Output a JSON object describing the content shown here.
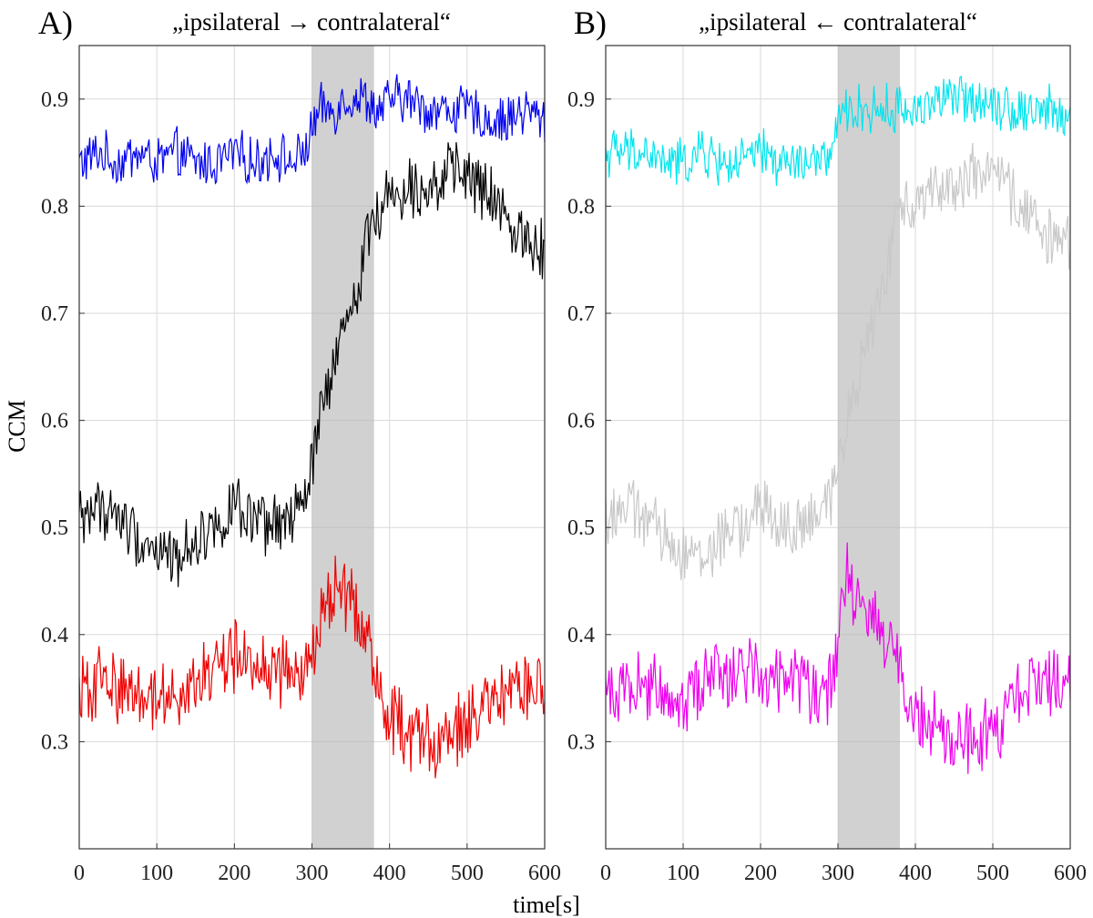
{
  "figure": {
    "xlabel": "time[s]",
    "ylabel": "CCM"
  },
  "chart_data": [
    {
      "type": "line",
      "panel_label": "A)",
      "title": "„ipsilateral → contralateral“",
      "xlim": [
        0,
        600
      ],
      "ylim": [
        0.2,
        0.95
      ],
      "x_ticks": [
        0,
        100,
        200,
        300,
        400,
        500,
        600
      ],
      "y_ticks": [
        0.3,
        0.4,
        0.5,
        0.6,
        0.7,
        0.8,
        0.9
      ],
      "grid": true,
      "shaded_region": {
        "x": [
          300,
          380
        ],
        "color": "#b3b3b3"
      },
      "x": [
        0,
        25,
        50,
        75,
        100,
        125,
        150,
        175,
        200,
        225,
        250,
        275,
        290,
        300,
        310,
        320,
        330,
        340,
        350,
        360,
        370,
        380,
        390,
        400,
        425,
        450,
        475,
        500,
        525,
        550,
        575,
        600
      ],
      "series": [
        {
          "color": "#0000ee",
          "noise": 0.02,
          "values": [
            0.84,
            0.85,
            0.84,
            0.85,
            0.84,
            0.85,
            0.84,
            0.84,
            0.85,
            0.84,
            0.85,
            0.84,
            0.85,
            0.87,
            0.89,
            0.89,
            0.89,
            0.9,
            0.9,
            0.9,
            0.9,
            0.89,
            0.89,
            0.9,
            0.9,
            0.89,
            0.89,
            0.89,
            0.88,
            0.88,
            0.89,
            0.88
          ]
        },
        {
          "color": "#000000",
          "noise": 0.025,
          "values": [
            0.51,
            0.52,
            0.51,
            0.49,
            0.48,
            0.47,
            0.49,
            0.5,
            0.52,
            0.5,
            0.5,
            0.51,
            0.52,
            0.56,
            0.6,
            0.63,
            0.65,
            0.68,
            0.7,
            0.73,
            0.77,
            0.79,
            0.8,
            0.81,
            0.82,
            0.82,
            0.83,
            0.83,
            0.81,
            0.79,
            0.77,
            0.76
          ]
        },
        {
          "color": "#ee0000",
          "noise": 0.03,
          "values": [
            0.34,
            0.36,
            0.35,
            0.35,
            0.34,
            0.35,
            0.35,
            0.37,
            0.38,
            0.37,
            0.37,
            0.36,
            0.36,
            0.38,
            0.41,
            0.43,
            0.44,
            0.44,
            0.43,
            0.42,
            0.4,
            0.37,
            0.34,
            0.32,
            0.31,
            0.3,
            0.3,
            0.32,
            0.33,
            0.34,
            0.35,
            0.35
          ]
        }
      ]
    },
    {
      "type": "line",
      "panel_label": "B)",
      "title": "„ipsilateral ← contralateral“",
      "xlim": [
        0,
        600
      ],
      "ylim": [
        0.2,
        0.95
      ],
      "x_ticks": [
        0,
        100,
        200,
        300,
        400,
        500,
        600
      ],
      "y_ticks": [
        0.3,
        0.4,
        0.5,
        0.6,
        0.7,
        0.8,
        0.9
      ],
      "grid": true,
      "shaded_region": {
        "x": [
          300,
          380
        ],
        "color": "#b3b3b3"
      },
      "x": [
        0,
        25,
        50,
        75,
        100,
        125,
        150,
        175,
        200,
        225,
        250,
        275,
        290,
        300,
        310,
        320,
        330,
        340,
        350,
        360,
        370,
        380,
        390,
        400,
        425,
        450,
        475,
        500,
        525,
        550,
        575,
        600
      ],
      "series": [
        {
          "color": "#00e5ee",
          "noise": 0.02,
          "values": [
            0.85,
            0.85,
            0.85,
            0.84,
            0.84,
            0.85,
            0.84,
            0.84,
            0.85,
            0.84,
            0.84,
            0.84,
            0.85,
            0.87,
            0.89,
            0.89,
            0.89,
            0.89,
            0.89,
            0.89,
            0.89,
            0.89,
            0.89,
            0.89,
            0.9,
            0.9,
            0.9,
            0.9,
            0.89,
            0.89,
            0.89,
            0.88
          ]
        },
        {
          "color": "#c8c8c8",
          "noise": 0.025,
          "values": [
            0.51,
            0.52,
            0.51,
            0.49,
            0.48,
            0.47,
            0.49,
            0.5,
            0.52,
            0.5,
            0.5,
            0.51,
            0.52,
            0.56,
            0.6,
            0.63,
            0.65,
            0.68,
            0.7,
            0.73,
            0.77,
            0.79,
            0.8,
            0.81,
            0.82,
            0.82,
            0.83,
            0.83,
            0.81,
            0.79,
            0.77,
            0.76
          ]
        },
        {
          "color": "#ee00ee",
          "noise": 0.03,
          "values": [
            0.34,
            0.36,
            0.35,
            0.35,
            0.34,
            0.36,
            0.36,
            0.37,
            0.37,
            0.36,
            0.36,
            0.35,
            0.35,
            0.38,
            0.45,
            0.44,
            0.43,
            0.42,
            0.41,
            0.4,
            0.39,
            0.37,
            0.33,
            0.32,
            0.31,
            0.3,
            0.3,
            0.31,
            0.33,
            0.35,
            0.36,
            0.36
          ]
        }
      ]
    }
  ]
}
